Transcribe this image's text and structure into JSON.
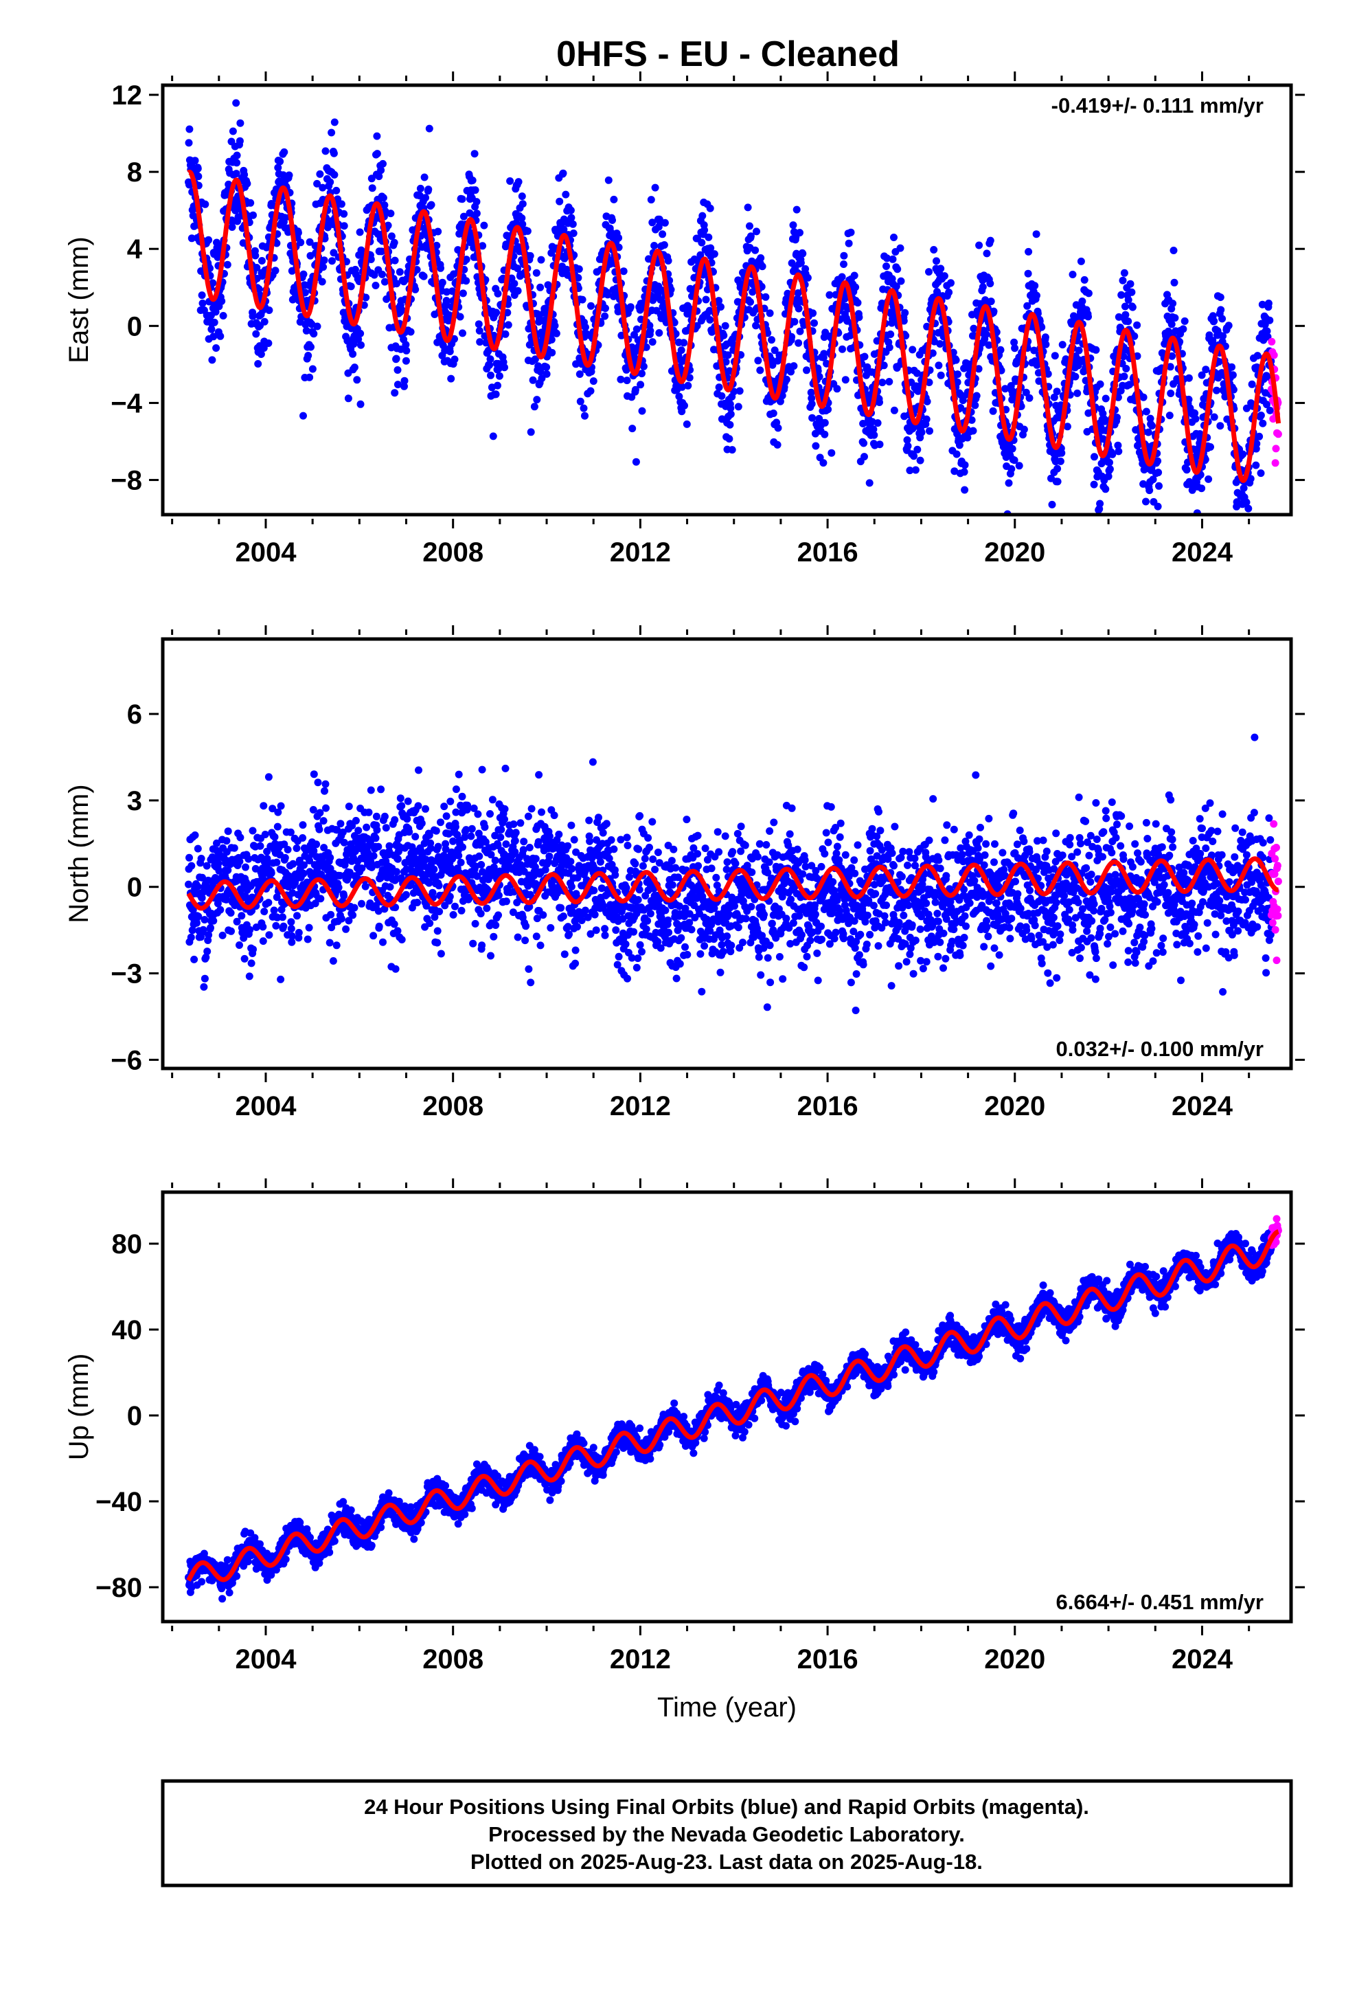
{
  "title": "0HFS  - EU - Cleaned",
  "colors": {
    "final": "#0000ff",
    "rapid": "#ff00ff",
    "model": "#ff0000",
    "frame": "#000000"
  },
  "chart_data": [
    {
      "type": "scatter",
      "component": "east",
      "ylabel": "East (mm)",
      "xlabel": "",
      "xlim": [
        2001.8,
        2025.9
      ],
      "ylim": [
        -9.8,
        12.5
      ],
      "xticks": [
        2004,
        2008,
        2012,
        2016,
        2020,
        2024
      ],
      "xtick_labels": [
        "2004",
        "2008",
        "2012",
        "2016",
        "2020",
        "2024"
      ],
      "yticks": [
        12,
        8,
        4,
        0,
        -4,
        -8
      ],
      "ytick_labels": [
        "12",
        "8",
        "4",
        "0",
        "−4",
        "−8"
      ],
      "rate_label": "-0.419+/- 0.111 mm/yr",
      "rate_position": "top-right",
      "data_span": [
        2002.35,
        2025.48
      ],
      "rapid_span": [
        2025.48,
        2025.63
      ],
      "model": {
        "intercept_at_start": 4.8,
        "rate_mm_per_yr": -0.419,
        "annual_amplitude_start": 3.2,
        "annual_amplitude_end": 3.4,
        "phase_peak_month": 5,
        "scatter_sd": 1.6
      },
      "samples": [
        [
          2002.4,
          8.3
        ],
        [
          2003.0,
          2.0
        ],
        [
          2003.4,
          8.0
        ],
        [
          2004.0,
          1.3
        ],
        [
          2004.4,
          7.6
        ],
        [
          2008.4,
          6.0
        ],
        [
          2012.3,
          4.3
        ],
        [
          2016.3,
          2.5
        ],
        [
          2020.3,
          1.0
        ],
        [
          2024.3,
          -1.0
        ],
        [
          2024.9,
          -7.5
        ],
        [
          2025.6,
          -4.5
        ]
      ]
    },
    {
      "type": "scatter",
      "component": "north",
      "ylabel": "North (mm)",
      "xlabel": "",
      "xlim": [
        2001.8,
        2025.9
      ],
      "ylim": [
        -6.3,
        8.6
      ],
      "xticks": [
        2004,
        2008,
        2012,
        2016,
        2020,
        2024
      ],
      "xtick_labels": [
        "2004",
        "2008",
        "2012",
        "2016",
        "2020",
        "2024"
      ],
      "yticks": [
        6,
        3,
        0,
        -3,
        -6
      ],
      "ytick_labels": [
        "6",
        "3",
        "0",
        "−3",
        "−6"
      ],
      "rate_label": "0.032+/- 0.100 mm/yr",
      "rate_position": "bottom-right",
      "data_span": [
        2002.35,
        2025.48
      ],
      "rapid_span": [
        2025.48,
        2025.63
      ],
      "model": {
        "intercept_at_start": -0.3,
        "rate_mm_per_yr": 0.032,
        "annual_amplitude_start": 0.45,
        "annual_amplitude_end": 0.55,
        "phase_peak_month": 2,
        "scatter_sd": 1.1
      },
      "samples": [
        [
          2002.4,
          -0.2
        ],
        [
          2006.0,
          0.1
        ],
        [
          2010.0,
          0.0
        ],
        [
          2014.0,
          0.0
        ],
        [
          2018.0,
          0.3
        ],
        [
          2022.0,
          0.5
        ],
        [
          2025.6,
          0.3
        ]
      ]
    },
    {
      "type": "scatter",
      "component": "up",
      "ylabel": "Up (mm)",
      "xlabel": "Time (year)",
      "xlim": [
        2001.8,
        2025.9
      ],
      "ylim": [
        -96,
        104
      ],
      "xticks": [
        2004,
        2008,
        2012,
        2016,
        2020,
        2024
      ],
      "xtick_labels": [
        "2004",
        "2008",
        "2012",
        "2016",
        "2020",
        "2024"
      ],
      "yticks": [
        80,
        40,
        0,
        -40,
        -80
      ],
      "ytick_labels": [
        "80",
        "40",
        "0",
        "−40",
        "−80"
      ],
      "rate_label": "6.664+/- 0.451 mm/yr",
      "rate_position": "bottom-right",
      "data_span": [
        2002.35,
        2025.48
      ],
      "rapid_span": [
        2025.48,
        2025.63
      ],
      "model": {
        "intercept_at_start": -76,
        "rate_mm_per_yr": 6.664,
        "annual_amplitude_start": 5.5,
        "annual_amplitude_end": 6.5,
        "phase_peak_month": 8,
        "scatter_sd": 3.2
      },
      "samples": [
        [
          2002.4,
          -78
        ],
        [
          2004.0,
          -68
        ],
        [
          2008.0,
          -42
        ],
        [
          2012.0,
          -18
        ],
        [
          2016.0,
          10
        ],
        [
          2020.0,
          37
        ],
        [
          2024.0,
          66
        ],
        [
          2025.6,
          84
        ]
      ]
    }
  ],
  "caption": [
    "24 Hour Positions Using Final Orbits (blue) and Rapid Orbits (magenta).",
    "Processed by the Nevada Geodetic Laboratory.",
    "Plotted on 2025-Aug-23. Last data on 2025-Aug-18."
  ]
}
